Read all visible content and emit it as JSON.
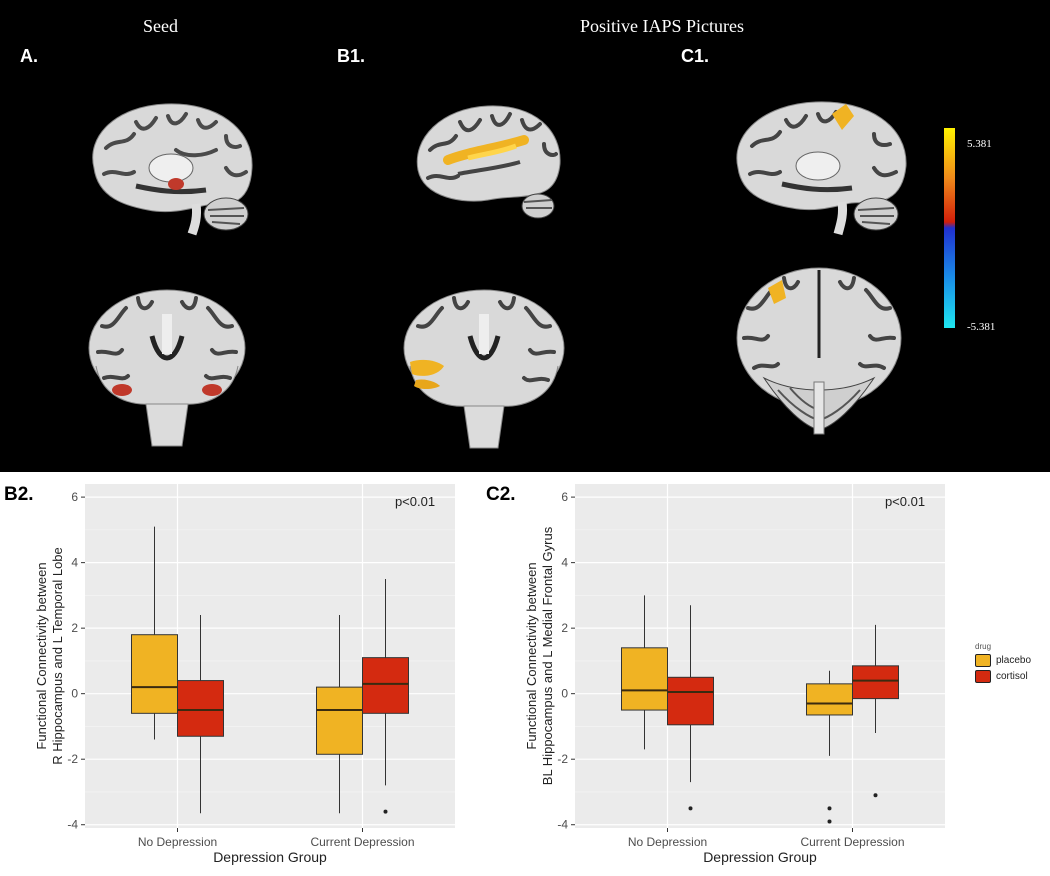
{
  "top": {
    "seed_title": "Seed",
    "main_title": "Positive IAPS Pictures",
    "labels": {
      "a": "A.",
      "b1": "B1.",
      "c1": "C1."
    },
    "colorbar": {
      "max_label": "5.381",
      "min_label": "-5.381"
    }
  },
  "legend": {
    "title": "drug",
    "items": [
      "placebo",
      "cortisol"
    ]
  },
  "colors": {
    "placebo": "#f0b323",
    "cortisol": "#d42a10",
    "panel_bg": "#ebebeb",
    "grid": "#ffffff"
  },
  "chart_data": [
    {
      "type": "box",
      "label": "B2.",
      "annotation": "p<0.01",
      "xlabel": "Depression Group",
      "ylabel": "Functional Connectivity between R Hippocampus and L Temporal Lobe",
      "ylim": [
        -4.1,
        6.4
      ],
      "yticks": [
        -4,
        -2,
        0,
        2,
        4,
        6
      ],
      "categories": [
        "No Depression",
        "Current Depression"
      ],
      "series": [
        {
          "name": "placebo",
          "boxes": [
            {
              "min": -1.4,
              "q1": -0.6,
              "median": 0.2,
              "q3": 1.8,
              "max": 5.1,
              "outliers": []
            },
            {
              "min": -3.65,
              "q1": -1.85,
              "median": -0.5,
              "q3": 0.2,
              "max": 2.4,
              "outliers": []
            }
          ]
        },
        {
          "name": "cortisol",
          "boxes": [
            {
              "min": -3.65,
              "q1": -1.3,
              "median": -0.5,
              "q3": 0.4,
              "max": 2.4,
              "outliers": []
            },
            {
              "min": -2.8,
              "q1": -0.6,
              "median": 0.3,
              "q3": 1.1,
              "max": 3.5,
              "outliers": [
                -3.6
              ]
            }
          ]
        }
      ]
    },
    {
      "type": "box",
      "label": "C2.",
      "annotation": "p<0.01",
      "xlabel": "Depression Group",
      "ylabel": "Functional Connectivity between BL Hippocampus and L Medial Frontal Gyrus",
      "ylim": [
        -4.1,
        6.4
      ],
      "yticks": [
        -4,
        -2,
        0,
        2,
        4,
        6
      ],
      "categories": [
        "No Depression",
        "Current Depression"
      ],
      "series": [
        {
          "name": "placebo",
          "boxes": [
            {
              "min": -1.7,
              "q1": -0.5,
              "median": 0.1,
              "q3": 1.4,
              "max": 3.0,
              "outliers": []
            },
            {
              "min": -1.9,
              "q1": -0.65,
              "median": -0.3,
              "q3": 0.3,
              "max": 0.7,
              "outliers": [
                -3.5,
                -3.9
              ]
            }
          ]
        },
        {
          "name": "cortisol",
          "boxes": [
            {
              "min": -2.7,
              "q1": -0.95,
              "median": 0.05,
              "q3": 0.5,
              "max": 2.7,
              "outliers": [
                -3.5
              ]
            },
            {
              "min": -1.2,
              "q1": -0.15,
              "median": 0.4,
              "q3": 0.85,
              "max": 2.1,
              "outliers": [
                -3.1
              ]
            }
          ]
        }
      ]
    }
  ]
}
